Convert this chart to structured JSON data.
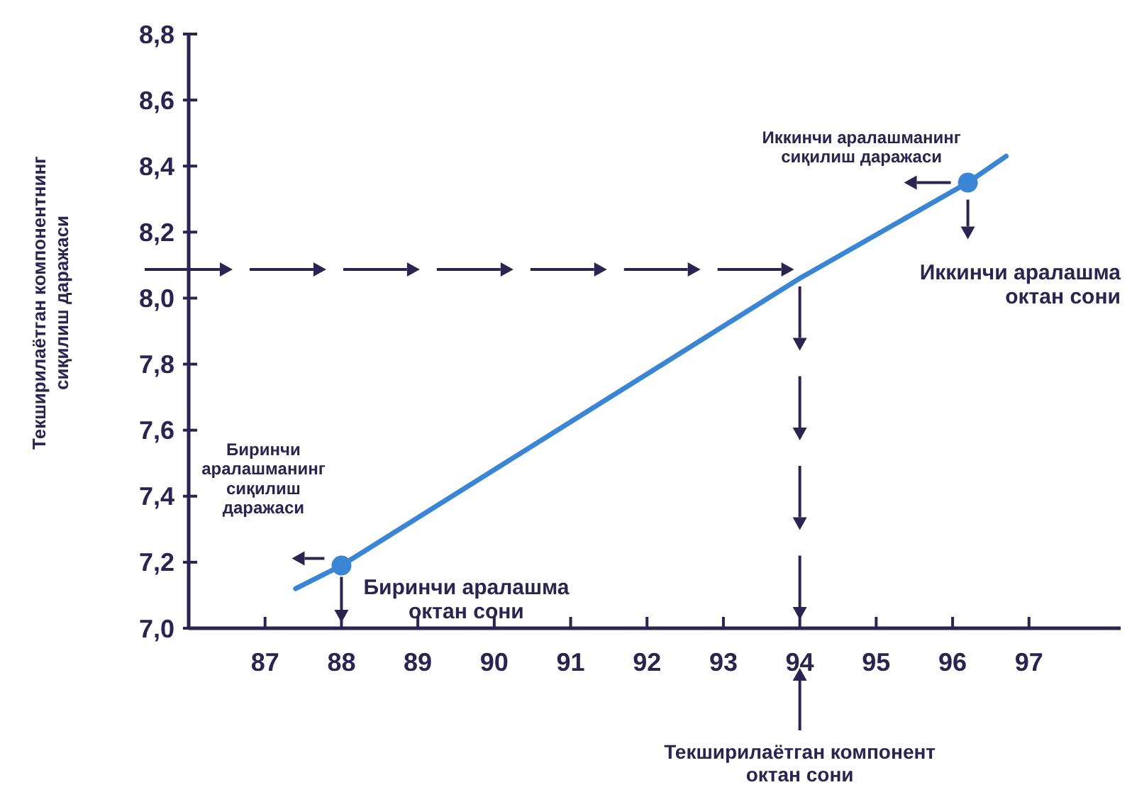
{
  "chart_data": {
    "type": "line",
    "ylabel": "Текширилаётган компонентнинг\nсиқилиш даражаси",
    "xlim": [
      86,
      98.2
    ],
    "ylim": [
      7,
      8.8
    ],
    "xticks": [
      87,
      88,
      89,
      90,
      91,
      92,
      93,
      94,
      95,
      96,
      97
    ],
    "yticks": [
      {
        "value": 7,
        "label": "7,0"
      },
      {
        "value": 7.2,
        "label": "7,2"
      },
      {
        "value": 7.4,
        "label": "7,4"
      },
      {
        "value": 7.6,
        "label": "7,6"
      },
      {
        "value": 7.8,
        "label": "7,8"
      },
      {
        "value": 8,
        "label": "8,0"
      },
      {
        "value": 8.2,
        "label": "8,2"
      },
      {
        "value": 8.4,
        "label": "8,4"
      },
      {
        "value": 8.6,
        "label": "8,6"
      },
      {
        "value": 8.8,
        "label": "8,8"
      }
    ],
    "series": [
      {
        "color": "#3a86d4",
        "marker": "none",
        "x": [
          87.4,
          88,
          94,
          96.2,
          96.7
        ],
        "values": [
          7.12,
          7.19,
          8.06,
          8.35,
          8.43
        ]
      },
      {
        "type": "scatter",
        "color": "#3a86d4",
        "marker": "circle",
        "x": [
          88,
          96.2
        ],
        "values": [
          7.19,
          8.35
        ]
      }
    ],
    "annotations": [
      "Биринчи\nаралашманинг\nсиқилиш\nдаражаси",
      "Биринчи аралашма\nоктан сони",
      "Иккинчи аралашманинг\nсиқилиш даражаси",
      "Иккинчи аралашма\nоктан сони",
      "Текширилаётган компонент\nоктан сони"
    ]
  }
}
